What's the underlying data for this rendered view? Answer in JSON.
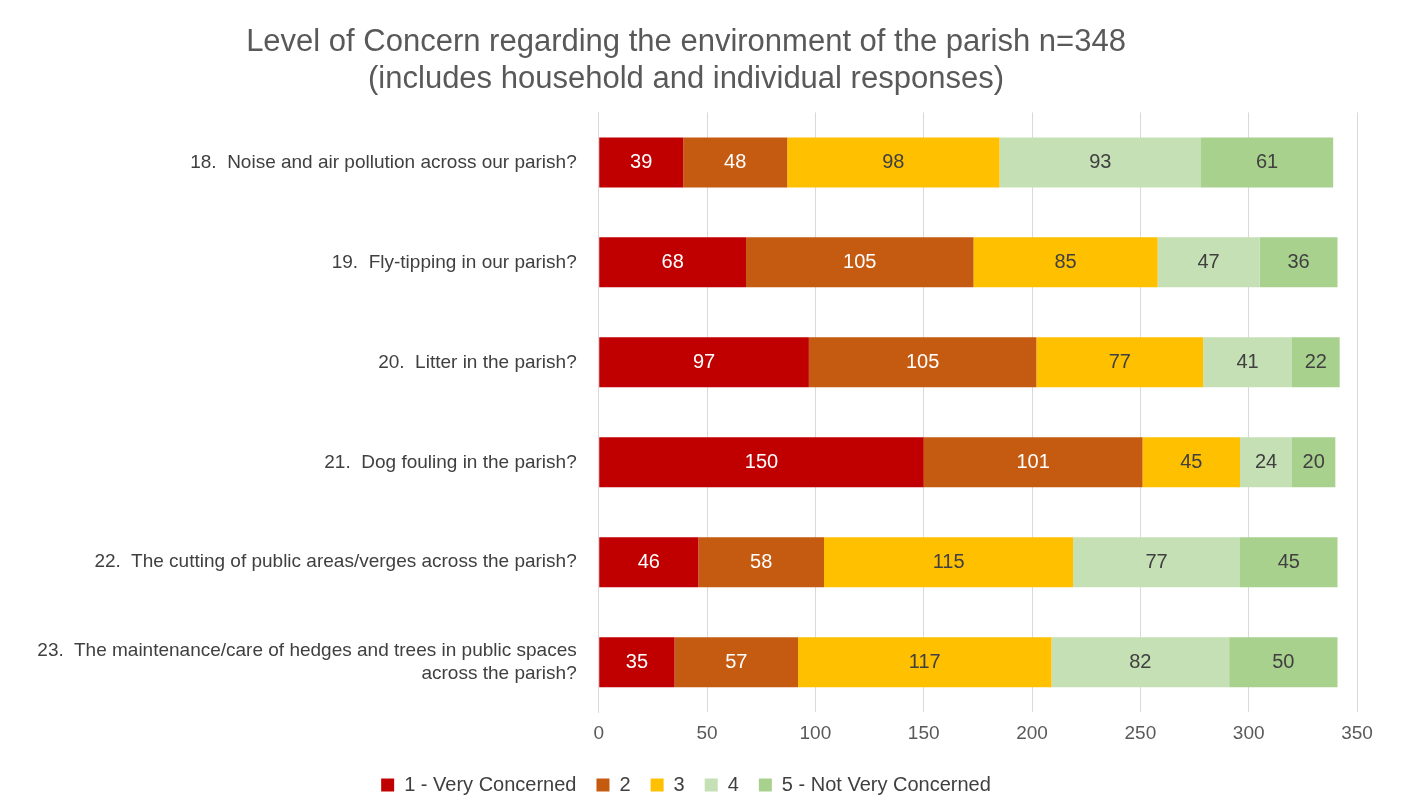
{
  "chart_data": {
    "type": "bar",
    "orientation": "horizontal",
    "stacked": true,
    "title": "Level of Concern regarding the environment of the parish n=348 (includes household and individual responses)",
    "categories": [
      "18.  Noise and air pollution across our parish?",
      "19.  Fly-tipping in our parish?",
      "20.  Litter in the parish?",
      "21.  Dog fouling in the parish?",
      "22.  The cutting of public areas/verges across the parish?",
      "23.  The maintenance/care of hedges and trees in public spaces across the parish?"
    ],
    "series": [
      {
        "name": "1 - Very Concerned",
        "color": "#c00000",
        "values": [
          39,
          68,
          97,
          150,
          46,
          35
        ]
      },
      {
        "name": "2",
        "color": "#c55a11",
        "values": [
          48,
          105,
          105,
          101,
          58,
          57
        ]
      },
      {
        "name": "3",
        "color": "#ffc000",
        "values": [
          98,
          85,
          77,
          45,
          115,
          117
        ]
      },
      {
        "name": "4",
        "color": "#c5e0b4",
        "values": [
          93,
          47,
          41,
          24,
          77,
          82
        ]
      },
      {
        "name": "5 - Not Very Concerned",
        "color": "#a9d18e",
        "values": [
          61,
          36,
          22,
          20,
          45,
          50
        ]
      }
    ],
    "xlim": [
      0,
      350
    ],
    "xticks": [
      0,
      50,
      100,
      150,
      200,
      250,
      300,
      350
    ],
    "grid": "x",
    "legend": "bottom",
    "data_labels": true
  }
}
